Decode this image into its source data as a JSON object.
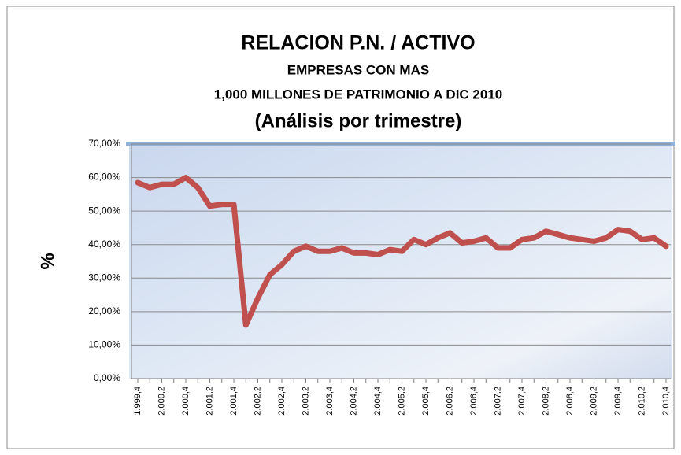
{
  "chart_data": {
    "type": "line",
    "title": "RELACION P.N. /  ACTIVO",
    "subtitle_lines": [
      "EMPRESAS CON MAS",
      "1,000 MILLONES DE PATRIMONIO  A DIC 2010",
      "(Análisis por trimestre)"
    ],
    "y_label": "%",
    "categories": [
      "1.999,4",
      null,
      "2.000,2",
      null,
      "2.000,4",
      null,
      "2.001,2",
      null,
      "2.001,4",
      null,
      "2.002,2",
      null,
      "2.002,4",
      null,
      "2.003,2",
      null,
      "2.003,4",
      null,
      "2.004,2",
      null,
      "2.004,4",
      null,
      "2.005,2",
      null,
      "2.005,4",
      null,
      "2.006,2",
      null,
      "2.006,4",
      null,
      "2.007,2",
      null,
      "2.007,4",
      null,
      "2.008,2",
      null,
      "2.008,4",
      null,
      "2.009,2",
      null,
      "2.009,4",
      null,
      "2.010,2",
      null,
      "2.010,4"
    ],
    "series": [
      {
        "name": "P.N. / Activo",
        "color": "#c0504d",
        "values": [
          58.5,
          57,
          58,
          58,
          60,
          57,
          51.5,
          52,
          52,
          16,
          24,
          31,
          34,
          38,
          39.5,
          38,
          38,
          39,
          37.5,
          37.5,
          37,
          38.5,
          38,
          41.5,
          40,
          42,
          43.5,
          40.5,
          41,
          42,
          39,
          39,
          41.5,
          42,
          44,
          43,
          42,
          41.5,
          41,
          42,
          44.5,
          44,
          41.5,
          42,
          39.5
        ]
      }
    ],
    "ylim": [
      0,
      70
    ],
    "yticks": [
      {
        "value": 0,
        "label": "0,00%"
      },
      {
        "value": 10,
        "label": "10,00%"
      },
      {
        "value": 20,
        "label": "20,00%"
      },
      {
        "value": 30,
        "label": "30,00%"
      },
      {
        "value": 40,
        "label": "40,00%"
      },
      {
        "value": 50,
        "label": "50,00%"
      },
      {
        "value": 60,
        "label": "60,00%"
      },
      {
        "value": 70,
        "label": "70,00%"
      }
    ],
    "grid": true
  }
}
